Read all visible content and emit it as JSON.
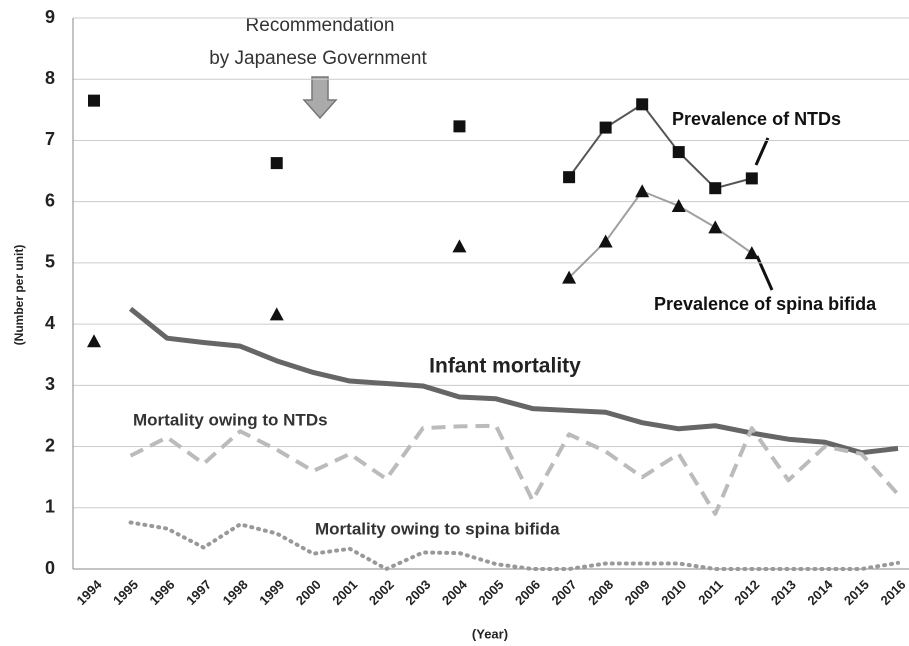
{
  "chart_data": {
    "type": "line",
    "annotations": [
      "Recommendation",
      "by Japanese Government"
    ],
    "x_label": "(Year)",
    "y_label": "(Number per unit)",
    "categories": [
      "1994",
      "1995",
      "1996",
      "1997",
      "1998",
      "1999",
      "2000",
      "2001",
      "2002",
      "2003",
      "2004",
      "2005",
      "2006",
      "2007",
      "2008",
      "2009",
      "2010",
      "2011",
      "2012",
      "2013",
      "2014",
      "2015",
      "2016"
    ],
    "ylim": [
      0,
      9
    ],
    "yticks": [
      0,
      1,
      2,
      3,
      4,
      5,
      6,
      7,
      8,
      9
    ],
    "grid": true,
    "series": [
      {
        "name": "Prevalence of NTDs",
        "color": "#555555",
        "style": "solid",
        "marker": "square",
        "values": [
          7.65,
          null,
          null,
          null,
          null,
          6.63,
          null,
          null,
          null,
          null,
          7.23,
          null,
          null,
          6.4,
          7.21,
          7.59,
          6.81,
          6.22,
          6.38,
          null,
          null,
          null,
          null
        ]
      },
      {
        "name": "Prevalence of spina bifida",
        "color": "#a0a0a0",
        "style": "solid",
        "marker": "triangle",
        "values": [
          3.72,
          null,
          null,
          null,
          null,
          4.16,
          null,
          null,
          null,
          null,
          5.27,
          null,
          null,
          4.76,
          5.35,
          6.17,
          5.93,
          5.58,
          5.16,
          null,
          null,
          null,
          null
        ]
      },
      {
        "name": "Infant mortality",
        "color": "#666666",
        "style": "thick",
        "values": [
          null,
          4.25,
          3.77,
          3.7,
          3.64,
          3.4,
          3.21,
          3.07,
          3.03,
          2.99,
          2.81,
          2.78,
          2.62,
          2.59,
          2.56,
          2.39,
          2.29,
          2.34,
          2.22,
          2.12,
          2.07,
          1.9,
          1.97
        ]
      },
      {
        "name": "Mortality owing to NTDs",
        "color": "#bbbbbb",
        "style": "dashed",
        "values": [
          null,
          1.85,
          2.15,
          1.72,
          2.25,
          1.95,
          1.6,
          1.88,
          1.47,
          2.3,
          2.33,
          2.34,
          1.12,
          2.2,
          1.92,
          1.5,
          1.88,
          0.9,
          2.3,
          1.45,
          2.0,
          1.88,
          1.22
        ]
      },
      {
        "name": "Mortality owing to spina bifida",
        "color": "#999999",
        "style": "dotted",
        "values": [
          null,
          0.76,
          0.66,
          0.35,
          0.73,
          0.58,
          0.25,
          0.33,
          0,
          0.27,
          0.26,
          0.08,
          0,
          0,
          0.09,
          0.09,
          0.09,
          0,
          0,
          0,
          0,
          0,
          0.1
        ]
      }
    ]
  }
}
